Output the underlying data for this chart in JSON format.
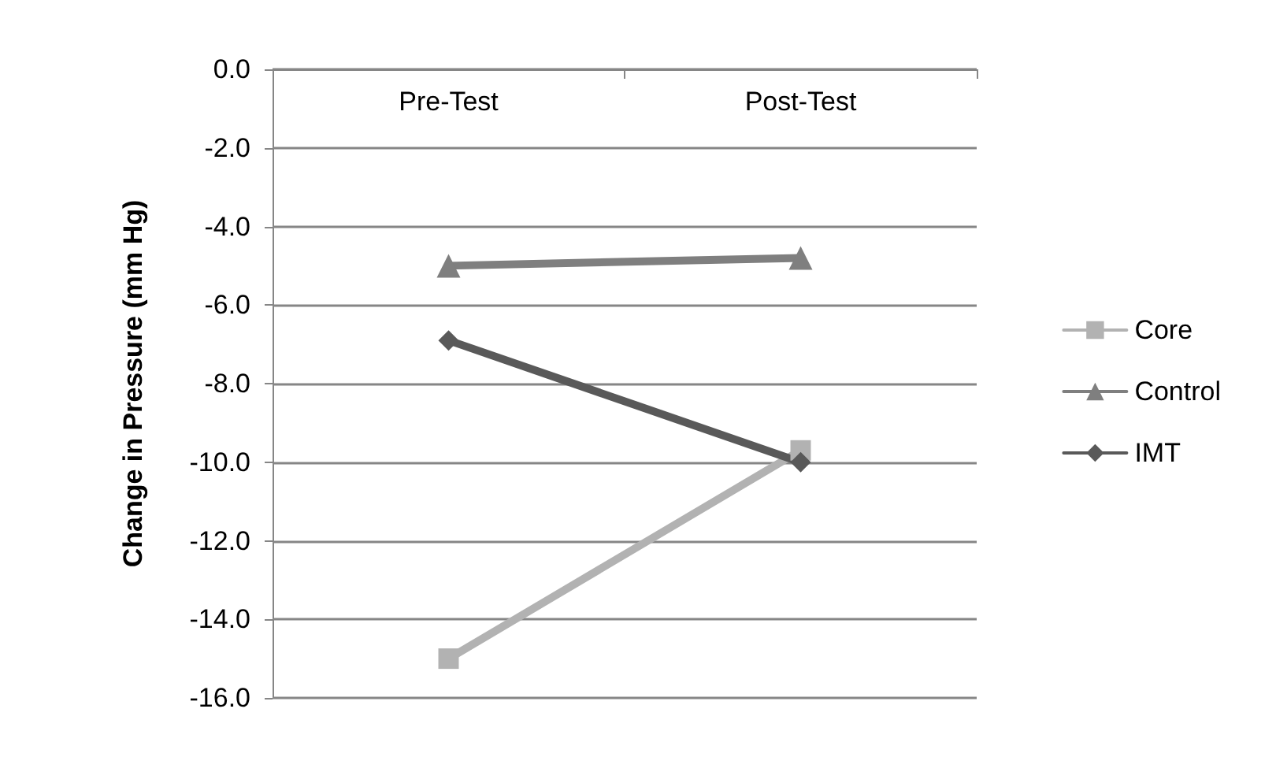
{
  "chart_data": {
    "type": "line",
    "ylabel": "Change in Pressure (mm Hg)",
    "categories": [
      "Pre-Test",
      "Post-Test"
    ],
    "series": [
      {
        "name": "Core",
        "color": "#b2b2b2",
        "marker": "square",
        "values": [
          -15.0,
          -9.7
        ]
      },
      {
        "name": "Control",
        "color": "#7f7f7f",
        "marker": "triangle",
        "values": [
          -5.0,
          -4.8
        ]
      },
      {
        "name": "IMT",
        "color": "#595959",
        "marker": "diamond",
        "values": [
          -6.9,
          -10.0
        ]
      }
    ],
    "ylim": [
      -16,
      0
    ],
    "yticks": [
      {
        "value": -16,
        "label": "-16.0"
      },
      {
        "value": -14,
        "label": "-14.0"
      },
      {
        "value": -12,
        "label": "-12.0"
      },
      {
        "value": -10,
        "label": "-10.0"
      },
      {
        "value": -8,
        "label": "-8.0"
      },
      {
        "value": -6,
        "label": "-6.0"
      },
      {
        "value": -4,
        "label": "-4.0"
      },
      {
        "value": -2,
        "label": "-2.0"
      },
      {
        "value": 0,
        "label": "0.0"
      }
    ],
    "grid": "y",
    "legend": "right",
    "line_style": "solid"
  }
}
